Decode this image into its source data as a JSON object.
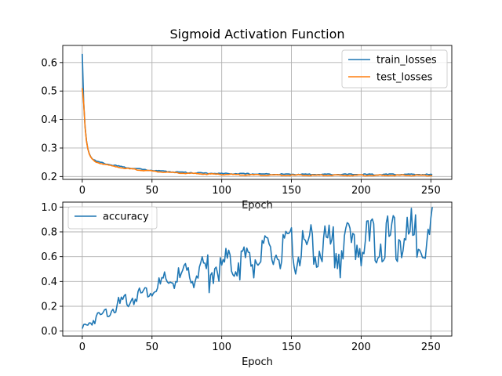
{
  "figure": {
    "title": "Sigmoid Activation Function"
  },
  "chart_data": [
    {
      "type": "line",
      "xlabel": "Epoch",
      "ylabel": "",
      "xlim": [
        -14,
        265
      ],
      "ylim": [
        0.19,
        0.66
      ],
      "xticks": [
        0,
        50,
        100,
        150,
        200,
        250
      ],
      "yticks": [
        0.2,
        0.3,
        0.4,
        0.5,
        0.6
      ],
      "grid": true,
      "legend_position": "upper right",
      "series": [
        {
          "name": "train_losses",
          "color": "#1f77b4",
          "values": []
        },
        {
          "name": "test_losses",
          "color": "#ff7f0e",
          "values": []
        }
      ]
    },
    {
      "type": "line",
      "xlabel": "Epoch",
      "ylabel": "",
      "xlim": [
        -14,
        265
      ],
      "ylim": [
        -0.04,
        1.04
      ],
      "xticks": [
        0,
        50,
        100,
        150,
        200,
        250
      ],
      "yticks": [
        0.0,
        0.2,
        0.4,
        0.6,
        0.8,
        1.0
      ],
      "grid": true,
      "legend_position": "upper left",
      "series": [
        {
          "name": "accuracy",
          "color": "#1f77b4",
          "values": []
        }
      ]
    }
  ]
}
